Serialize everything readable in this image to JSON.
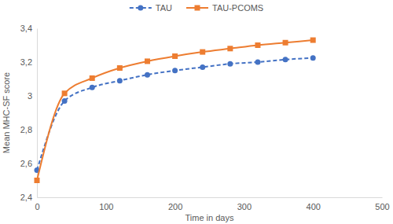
{
  "chart_data": {
    "type": "line",
    "x_label": "Time in days",
    "y_label": "Mean MHC-SF score",
    "x": [
      0,
      40,
      80,
      120,
      160,
      200,
      240,
      280,
      320,
      360,
      400
    ],
    "series": [
      {
        "name": "TAU",
        "color": "#4472c4",
        "marker": "circle",
        "line_style": "dashed",
        "values": [
          2.56,
          2.97,
          3.05,
          3.09,
          3.125,
          3.15,
          3.17,
          3.19,
          3.2,
          3.215,
          3.225
        ]
      },
      {
        "name": "TAU-PCOMS",
        "color": "#ed7d31",
        "marker": "square",
        "line_style": "solid",
        "values": [
          2.5,
          3.015,
          3.105,
          3.165,
          3.205,
          3.235,
          3.26,
          3.28,
          3.3,
          3.315,
          3.33
        ]
      }
    ],
    "xlim": [
      0,
      500
    ],
    "xticks": [
      0,
      100,
      200,
      300,
      400,
      500
    ],
    "ylim": [
      2.4,
      3.4
    ],
    "yticks": [
      {
        "value": 2.4,
        "label": "2,4"
      },
      {
        "value": 2.6,
        "label": "2,6"
      },
      {
        "value": 2.8,
        "label": "2,8"
      },
      3,
      {
        "value": 3.2,
        "label": "3,2"
      },
      {
        "value": 3.4,
        "label": "3,4"
      }
    ],
    "grid": false,
    "legend": "top"
  }
}
